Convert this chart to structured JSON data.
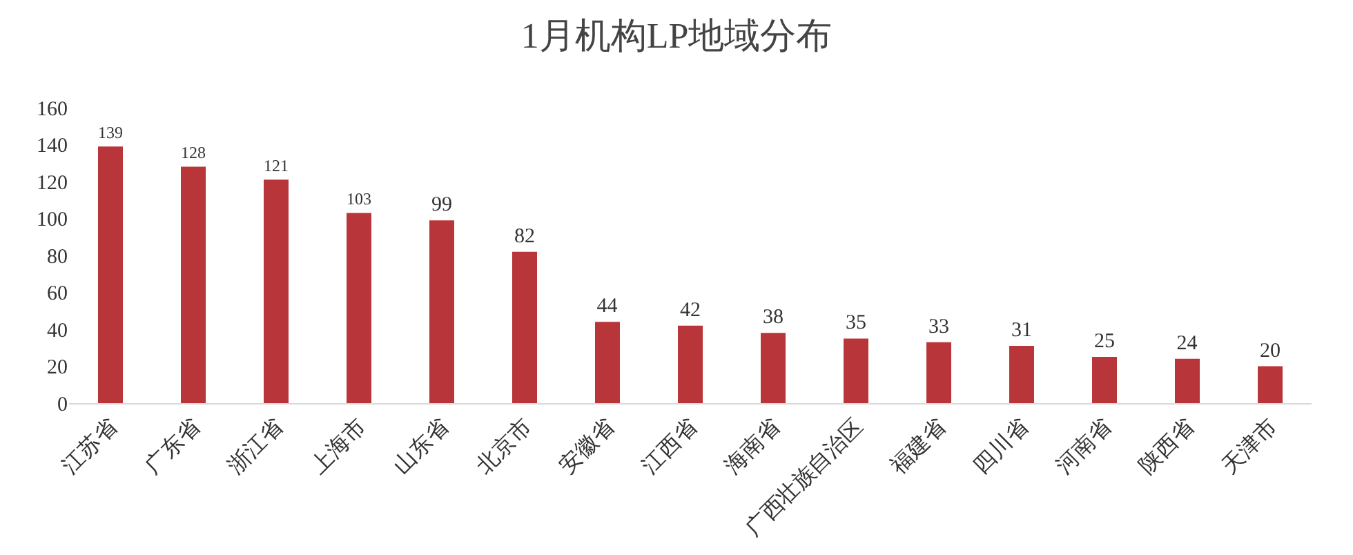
{
  "chart_data": {
    "type": "bar",
    "title": "1月机构LP地域分布",
    "categories": [
      "江苏省",
      "广东省",
      "浙江省",
      "上海市",
      "山东省",
      "北京市",
      "安徽省",
      "江西省",
      "海南省",
      "广西壮族自治区",
      "福建省",
      "四川省",
      "河南省",
      "陕西省",
      "天津市"
    ],
    "values": [
      139,
      128,
      121,
      103,
      99,
      82,
      44,
      42,
      38,
      35,
      33,
      31,
      25,
      24,
      20
    ],
    "color": "#b8353a",
    "ylim": [
      0,
      160
    ],
    "yticks": [
      0,
      20,
      40,
      60,
      80,
      100,
      120,
      140,
      160
    ],
    "grid": false,
    "data_labels": true
  }
}
